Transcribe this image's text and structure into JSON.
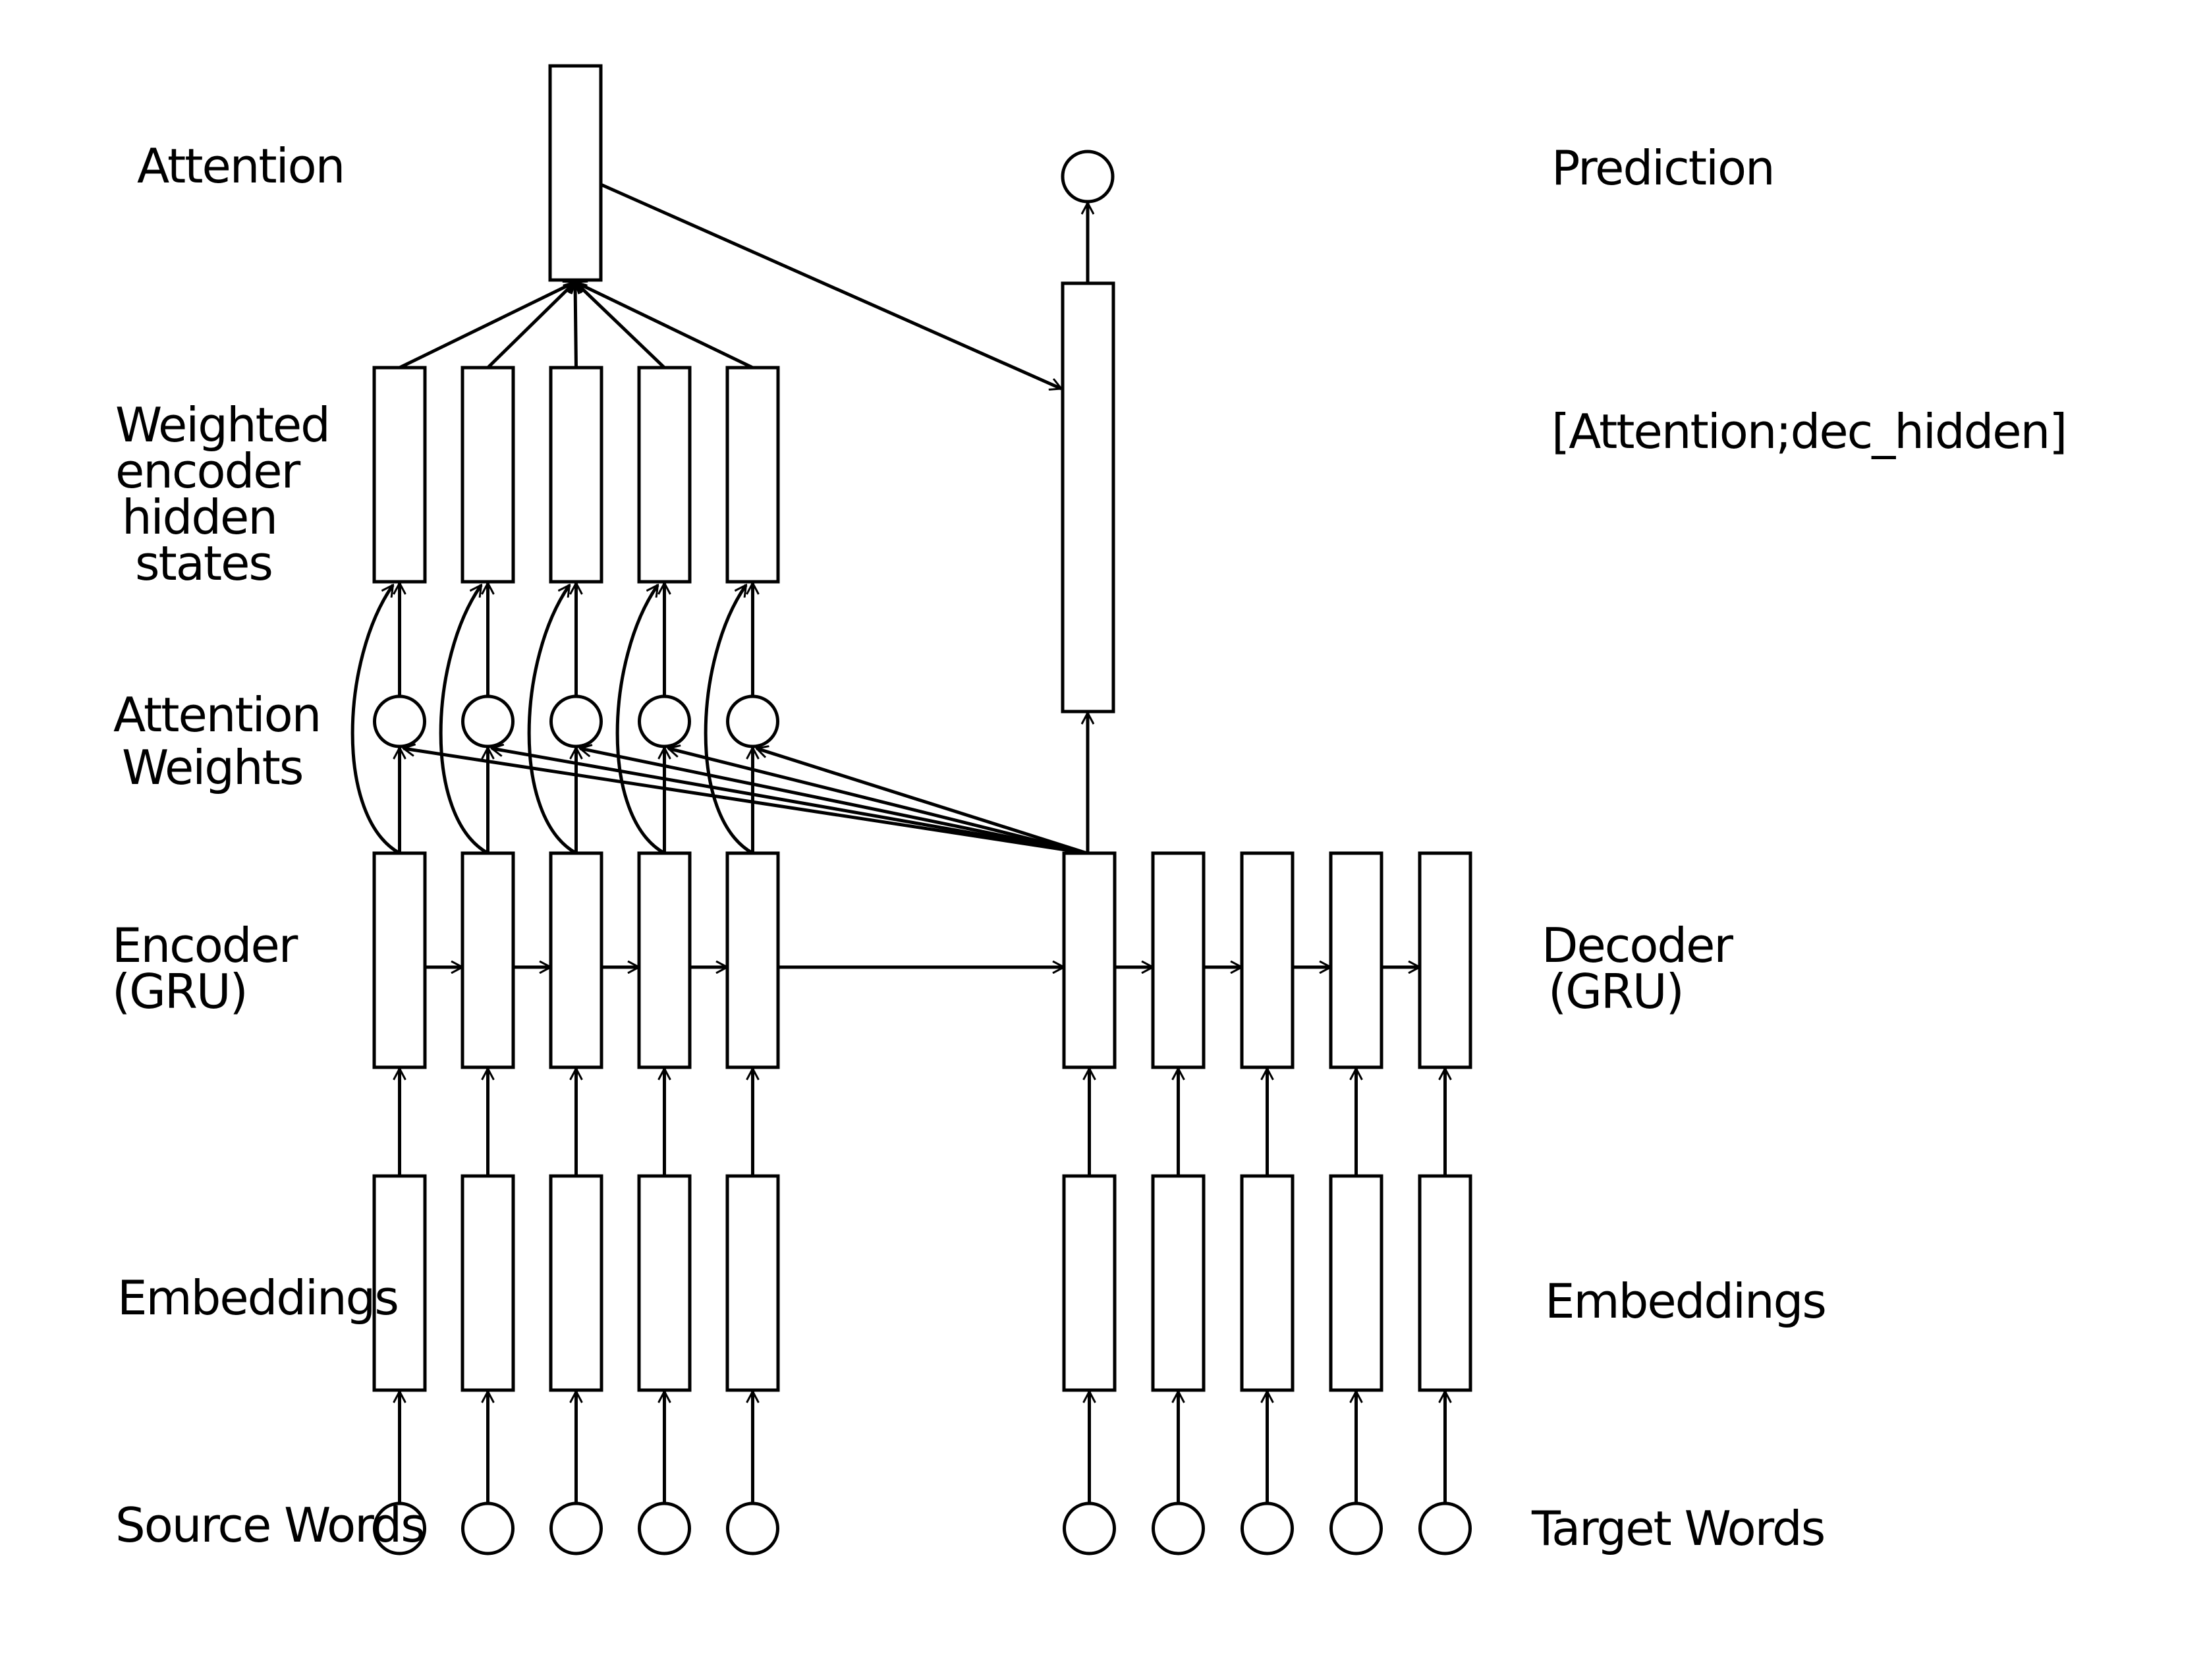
{
  "labels": {
    "attention": "Attention",
    "weighted_line1": "Weighted",
    "weighted_line2": "encoder",
    "weighted_line3": "hidden",
    "weighted_line4": "states",
    "attention_weights_line1": "Attention",
    "attention_weights_line2": "Weights",
    "encoder_line1": "Encoder",
    "encoder_line2": "(GRU)",
    "source_embeddings": "Embeddings",
    "source_words": "Source Words",
    "prediction": "Prediction",
    "concat": "[Attention;dec_hidden]",
    "decoder_line1": "Decoder",
    "decoder_line2": "(GRU)",
    "target_embeddings": "Embeddings",
    "target_words": "Target Words"
  },
  "colors": {
    "stroke": "#000000",
    "background": "#ffffff"
  }
}
